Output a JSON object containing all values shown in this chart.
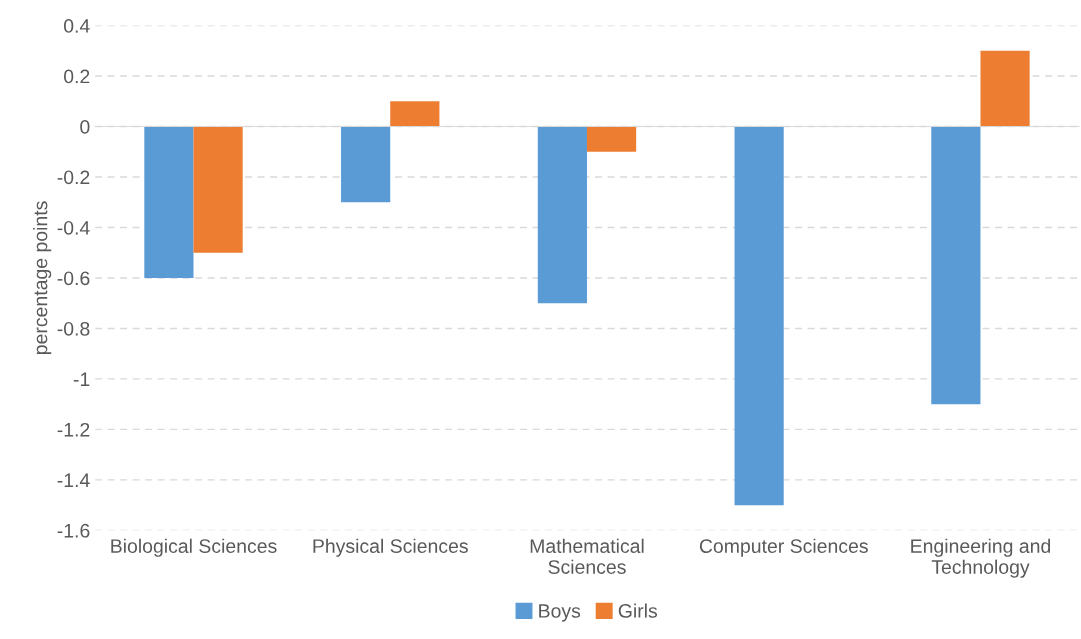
{
  "chart_data": {
    "type": "bar",
    "ylabel": "percentage points",
    "categories": [
      "Biological Sciences",
      "Physical Sciences",
      "Mathematical Sciences",
      "Computer Sciences",
      "Engineering and Technology"
    ],
    "series": [
      {
        "name": "Boys",
        "color": "#5b9bd5",
        "values": [
          -0.6,
          -0.3,
          -0.7,
          -1.5,
          -1.1
        ]
      },
      {
        "name": "Girls",
        "color": "#ed7d31",
        "values": [
          -0.5,
          0.1,
          -0.1,
          0,
          0.3
        ]
      }
    ],
    "ylim": [
      -1.6,
      0.4
    ],
    "yticks": [
      {
        "value": -1.6,
        "label": "-1.6"
      },
      {
        "value": -1.4,
        "label": "-1.4"
      },
      {
        "value": -1.2,
        "label": "-1.2"
      },
      {
        "value": -1,
        "label": "-1"
      },
      {
        "value": -0.8,
        "label": "-0.8"
      },
      {
        "value": -0.6,
        "label": "-0.6"
      },
      {
        "value": -0.4,
        "label": "-0.4"
      },
      {
        "value": -0.2,
        "label": "-0.2"
      },
      0,
      0.2,
      0.4
    ],
    "grid": "y",
    "legend": "bottom"
  }
}
